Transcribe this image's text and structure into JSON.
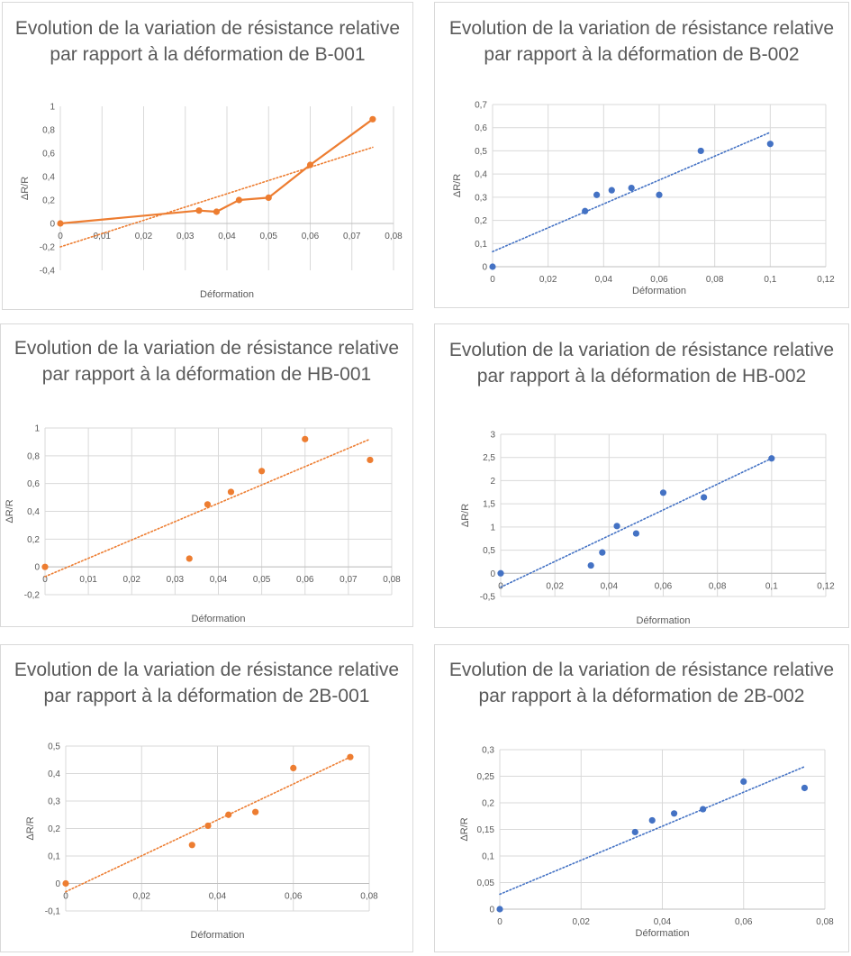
{
  "chart_data": [
    {
      "type": "line",
      "title": "Evolution de la variation de résistance relative par rapport à la déformation de B-001",
      "xlabel": "Déformation",
      "ylabel": "ΔR/R",
      "color": "#ED7D31",
      "xlim": [
        0,
        0.08
      ],
      "ylim": [
        -0.4,
        1
      ],
      "xticks": [
        "0",
        "0,01",
        "0,02",
        "0,03",
        "0,04",
        "0,05",
        "0,06",
        "0,07",
        "0,08"
      ],
      "yticks": [
        "-0,4",
        "-0,2",
        "0",
        "0,2",
        "0,4",
        "0,6",
        "0,8",
        "1"
      ],
      "grid": "vertical",
      "x": [
        0,
        0.0333,
        0.0375,
        0.0429,
        0.05,
        0.06,
        0.075
      ],
      "y": [
        0,
        0.11,
        0.1,
        0.2,
        0.22,
        0.5,
        0.89
      ],
      "trendline": {
        "x": [
          0,
          0.075
        ],
        "y": [
          -0.2,
          0.65
        ]
      }
    },
    {
      "type": "scatter",
      "title": "Evolution de la variation de résistance relative par rapport à la déformation de B-002",
      "xlabel": "Déformation",
      "ylabel": "ΔR/R",
      "color": "#4472C4",
      "xlim": [
        0,
        0.12
      ],
      "ylim": [
        0,
        0.7
      ],
      "xticks": [
        "0",
        "0,02",
        "0,04",
        "0,06",
        "0,08",
        "0,1",
        "0,12"
      ],
      "yticks": [
        "0",
        "0,1",
        "0,2",
        "0,3",
        "0,4",
        "0,5",
        "0,6",
        "0,7"
      ],
      "grid": "both",
      "x": [
        0,
        0.0333,
        0.0375,
        0.0429,
        0.05,
        0.06,
        0.075,
        0.1
      ],
      "y": [
        0,
        0.24,
        0.31,
        0.33,
        0.34,
        0.31,
        0.5,
        0.53
      ],
      "trendline": {
        "x": [
          0,
          0.1
        ],
        "y": [
          0.065,
          0.58
        ]
      }
    },
    {
      "type": "scatter",
      "title": "Evolution de la variation de résistance relative par rapport à la déformation de HB-001",
      "xlabel": "Déformation",
      "ylabel": "ΔR/R",
      "color": "#ED7D31",
      "xlim": [
        0,
        0.08
      ],
      "ylim": [
        -0.2,
        1
      ],
      "xticks": [
        "0",
        "0,01",
        "0,02",
        "0,03",
        "0,04",
        "0,05",
        "0,06",
        "0,07",
        "0,08"
      ],
      "yticks": [
        "-0,2",
        "0",
        "0,2",
        "0,4",
        "0,6",
        "0,8",
        "1"
      ],
      "grid": "both",
      "x": [
        0,
        0.0333,
        0.0375,
        0.0429,
        0.05,
        0.06,
        0.075
      ],
      "y": [
        0,
        0.06,
        0.45,
        0.54,
        0.69,
        0.92,
        0.77
      ],
      "trendline": {
        "x": [
          0,
          0.075
        ],
        "y": [
          -0.07,
          0.92
        ]
      }
    },
    {
      "type": "scatter",
      "title": "Evolution de la variation de résistance relative par rapport à la déformation de HB-002",
      "xlabel": "Déformation",
      "ylabel": "ΔR/R",
      "color": "#4472C4",
      "xlim": [
        0,
        0.12
      ],
      "ylim": [
        -0.5,
        3
      ],
      "xticks": [
        "0",
        "0,02",
        "0,04",
        "0,06",
        "0,08",
        "0,1",
        "0,12"
      ],
      "yticks": [
        "-0,5",
        "0",
        "0,5",
        "1",
        "1,5",
        "2",
        "2,5",
        "3"
      ],
      "grid": "both",
      "x": [
        0,
        0.0333,
        0.0375,
        0.0429,
        0.05,
        0.06,
        0.075,
        0.1
      ],
      "y": [
        0,
        0.17,
        0.45,
        1.02,
        0.86,
        1.74,
        1.64,
        2.48
      ],
      "trendline": {
        "x": [
          0,
          0.1
        ],
        "y": [
          -0.3,
          2.48
        ]
      }
    },
    {
      "type": "scatter",
      "title": "Evolution de la variation de résistance relative par rapport à la déformation de 2B-001",
      "xlabel": "Déformation",
      "ylabel": "ΔR/R",
      "color": "#ED7D31",
      "xlim": [
        0,
        0.08
      ],
      "ylim": [
        -0.1,
        0.5
      ],
      "xticks": [
        "0",
        "0,02",
        "0,04",
        "0,06",
        "0,08"
      ],
      "yticks": [
        "-0,1",
        "0",
        "0,1",
        "0,2",
        "0,3",
        "0,4",
        "0,5"
      ],
      "grid": "both",
      "x": [
        0,
        0.0333,
        0.0375,
        0.0429,
        0.05,
        0.06,
        0.075
      ],
      "y": [
        0,
        0.14,
        0.21,
        0.25,
        0.26,
        0.42,
        0.46
      ],
      "trendline": {
        "x": [
          0,
          0.075
        ],
        "y": [
          -0.03,
          0.46
        ]
      }
    },
    {
      "type": "scatter",
      "title": "Evolution de la variation de résistance relative par rapport à la déformation de 2B-002",
      "xlabel": "Déformation",
      "ylabel": "ΔR/R",
      "color": "#4472C4",
      "xlim": [
        0,
        0.08
      ],
      "ylim": [
        0,
        0.3
      ],
      "xticks": [
        "0",
        "0,02",
        "0,04",
        "0,06",
        "0,08"
      ],
      "yticks": [
        "0",
        "0,05",
        "0,1",
        "0,15",
        "0,2",
        "0,25",
        "0,3"
      ],
      "grid": "both",
      "x": [
        0,
        0.0333,
        0.0375,
        0.0429,
        0.05,
        0.06,
        0.075
      ],
      "y": [
        0,
        0.145,
        0.167,
        0.18,
        0.188,
        0.24,
        0.228
      ],
      "trendline": {
        "x": [
          0,
          0.075
        ],
        "y": [
          0.028,
          0.268
        ]
      }
    }
  ]
}
